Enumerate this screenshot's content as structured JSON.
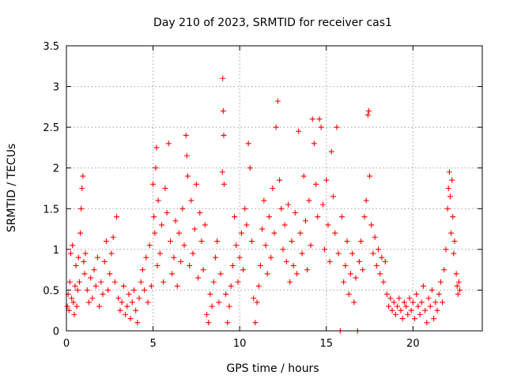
{
  "chart_data": {
    "type": "scatter",
    "title": "Day 210 of 2023, SRMTID for receiver cas1",
    "xlabel": "GPS time / hours",
    "ylabel": "SRMTID / TECUs",
    "xlim": [
      0,
      24
    ],
    "ylim": [
      0,
      3.5
    ],
    "xticks": [
      0,
      5,
      10,
      15,
      20
    ],
    "xtick_labels": [
      "0",
      "5",
      "10",
      "15",
      "20"
    ],
    "yticks": [
      0,
      0.5,
      1,
      1.5,
      2,
      2.5,
      3,
      3.5
    ],
    "ytick_labels": [
      "0",
      "0.5",
      "1",
      "1.5",
      "2",
      "2.5",
      "3",
      "3.5"
    ],
    "grid": true,
    "marker": "+",
    "marker_color": "#ff0000",
    "series": [
      {
        "name": "SRMTID",
        "points": [
          [
            0.05,
            0.3
          ],
          [
            0.1,
            0.45
          ],
          [
            0.15,
            0.25
          ],
          [
            0.2,
            0.6
          ],
          [
            0.25,
            0.95
          ],
          [
            0.3,
            0.4
          ],
          [
            0.35,
            1.05
          ],
          [
            0.4,
            0.35
          ],
          [
            0.45,
            0.2
          ],
          [
            0.5,
            0.55
          ],
          [
            0.55,
            0.8
          ],
          [
            0.6,
            0.3
          ],
          [
            0.65,
            0.5
          ],
          [
            0.7,
            0.9
          ],
          [
            0.75,
            0.6
          ],
          [
            0.8,
            1.2
          ],
          [
            0.85,
            1.5
          ],
          [
            0.9,
            1.75
          ],
          [
            0.95,
            1.9
          ],
          [
            1.0,
            0.85
          ],
          [
            1.05,
            0.7
          ],
          [
            1.1,
            0.95
          ],
          [
            1.2,
            0.5
          ],
          [
            1.3,
            0.35
          ],
          [
            1.4,
            0.65
          ],
          [
            1.5,
            0.4
          ],
          [
            1.6,
            0.75
          ],
          [
            1.7,
            0.55
          ],
          [
            1.8,
            0.9
          ],
          [
            1.9,
            0.3
          ],
          [
            2.0,
            0.6
          ],
          [
            2.1,
            0.45
          ],
          [
            2.2,
            0.85
          ],
          [
            2.3,
            1.1
          ],
          [
            2.4,
            0.5
          ],
          [
            2.5,
            0.7
          ],
          [
            2.6,
            0.95
          ],
          [
            2.7,
            1.15
          ],
          [
            2.8,
            0.6
          ],
          [
            2.9,
            1.4
          ],
          [
            3.0,
            0.4
          ],
          [
            3.1,
            0.25
          ],
          [
            3.2,
            0.35
          ],
          [
            3.3,
            0.55
          ],
          [
            3.4,
            0.2
          ],
          [
            3.5,
            0.3
          ],
          [
            3.6,
            0.45
          ],
          [
            3.7,
            0.15
          ],
          [
            3.8,
            0.35
          ],
          [
            3.9,
            0.5
          ],
          [
            4.0,
            0.25
          ],
          [
            4.1,
            0.1
          ],
          [
            4.2,
            0.4
          ],
          [
            4.3,
            0.6
          ],
          [
            4.4,
            0.75
          ],
          [
            4.5,
            0.5
          ],
          [
            4.6,
            0.9
          ],
          [
            4.7,
            0.35
          ],
          [
            4.8,
            1.05
          ],
          [
            4.9,
            0.55
          ],
          [
            5.0,
            1.8
          ],
          [
            5.05,
            1.4
          ],
          [
            5.1,
            1.2
          ],
          [
            5.15,
            2.0
          ],
          [
            5.2,
            2.25
          ],
          [
            5.25,
            0.8
          ],
          [
            5.3,
            1.6
          ],
          [
            5.4,
            0.95
          ],
          [
            5.5,
            1.3
          ],
          [
            5.6,
            0.6
          ],
          [
            5.7,
            1.75
          ],
          [
            5.8,
            1.45
          ],
          [
            5.9,
            2.3
          ],
          [
            6.0,
            1.1
          ],
          [
            6.1,
            0.7
          ],
          [
            6.2,
            0.9
          ],
          [
            6.3,
            1.35
          ],
          [
            6.4,
            0.55
          ],
          [
            6.5,
            1.2
          ],
          [
            6.6,
            0.85
          ],
          [
            6.7,
            1.5
          ],
          [
            6.8,
            1.05
          ],
          [
            6.9,
            2.4
          ],
          [
            6.95,
            2.15
          ],
          [
            7.0,
            1.9
          ],
          [
            7.1,
            0.8
          ],
          [
            7.2,
            1.6
          ],
          [
            7.3,
            0.95
          ],
          [
            7.4,
            1.25
          ],
          [
            7.5,
            1.8
          ],
          [
            7.6,
            0.65
          ],
          [
            7.7,
            1.45
          ],
          [
            7.8,
            1.1
          ],
          [
            7.9,
            0.75
          ],
          [
            8.0,
            1.3
          ],
          [
            8.1,
            0.2
          ],
          [
            8.2,
            0.1
          ],
          [
            8.3,
            0.45
          ],
          [
            8.4,
            0.3
          ],
          [
            8.5,
            0.6
          ],
          [
            8.6,
            0.9
          ],
          [
            8.7,
            1.1
          ],
          [
            8.8,
            0.35
          ],
          [
            8.9,
            0.7
          ],
          [
            9.0,
            1.95
          ],
          [
            9.02,
            3.1
          ],
          [
            9.05,
            2.7
          ],
          [
            9.08,
            2.4
          ],
          [
            9.1,
            1.8
          ],
          [
            9.2,
            0.45
          ],
          [
            9.3,
            0.1
          ],
          [
            9.4,
            0.3
          ],
          [
            9.5,
            0.55
          ],
          [
            9.6,
            0.8
          ],
          [
            9.7,
            1.4
          ],
          [
            9.8,
            1.05
          ],
          [
            9.9,
            0.6
          ],
          [
            10.0,
            0.9
          ],
          [
            10.1,
            1.2
          ],
          [
            10.2,
            0.75
          ],
          [
            10.3,
            1.5
          ],
          [
            10.4,
            1.3
          ],
          [
            10.5,
            2.3
          ],
          [
            10.6,
            2.0
          ],
          [
            10.7,
            1.1
          ],
          [
            10.8,
            0.4
          ],
          [
            10.9,
            0.1
          ],
          [
            11.0,
            0.35
          ],
          [
            11.1,
            0.55
          ],
          [
            11.2,
            0.8
          ],
          [
            11.3,
            1.25
          ],
          [
            11.4,
            1.6
          ],
          [
            11.5,
            1.05
          ],
          [
            11.6,
            0.7
          ],
          [
            11.7,
            1.4
          ],
          [
            11.8,
            0.9
          ],
          [
            11.9,
            1.75
          ],
          [
            12.0,
            1.2
          ],
          [
            12.1,
            2.5
          ],
          [
            12.2,
            2.82
          ],
          [
            12.3,
            1.85
          ],
          [
            12.4,
            1.5
          ],
          [
            12.5,
            1.0
          ],
          [
            12.6,
            1.3
          ],
          [
            12.7,
            0.85
          ],
          [
            12.8,
            1.55
          ],
          [
            12.9,
            0.6
          ],
          [
            13.0,
            1.1
          ],
          [
            13.1,
            0.8
          ],
          [
            13.2,
            1.45
          ],
          [
            13.3,
            0.7
          ],
          [
            13.4,
            2.45
          ],
          [
            13.5,
            1.2
          ],
          [
            13.6,
            0.95
          ],
          [
            13.7,
            1.9
          ],
          [
            13.8,
            1.35
          ],
          [
            13.9,
            0.75
          ],
          [
            14.0,
            1.6
          ],
          [
            14.1,
            1.05
          ],
          [
            14.2,
            2.6
          ],
          [
            14.3,
            2.3
          ],
          [
            14.4,
            1.8
          ],
          [
            14.5,
            1.4
          ],
          [
            14.6,
            2.6
          ],
          [
            14.7,
            2.5
          ],
          [
            14.8,
            1.55
          ],
          [
            14.9,
            1.0
          ],
          [
            15.0,
            1.85
          ],
          [
            15.1,
            1.3
          ],
          [
            15.2,
            0.85
          ],
          [
            15.3,
            2.2
          ],
          [
            15.4,
            1.65
          ],
          [
            15.5,
            1.2
          ],
          [
            15.6,
            2.5
          ],
          [
            15.7,
            0.95
          ],
          [
            15.8,
            0.0
          ],
          [
            15.9,
            1.4
          ],
          [
            16.0,
            0.6
          ],
          [
            16.1,
            0.8
          ],
          [
            16.2,
            1.1
          ],
          [
            16.3,
            0.45
          ],
          [
            16.4,
            0.7
          ],
          [
            16.5,
            0.95
          ],
          [
            16.6,
            0.35
          ],
          [
            16.7,
            0.65
          ],
          [
            16.8,
            0.0
          ],
          [
            16.9,
            0.85
          ],
          [
            17.0,
            1.1
          ],
          [
            17.1,
            0.75
          ],
          [
            17.2,
            1.4
          ],
          [
            17.3,
            1.6
          ],
          [
            17.4,
            2.65
          ],
          [
            17.45,
            2.7
          ],
          [
            17.5,
            1.9
          ],
          [
            17.6,
            1.3
          ],
          [
            17.7,
            0.95
          ],
          [
            17.8,
            1.15
          ],
          [
            17.9,
            0.8
          ],
          [
            18.0,
            1.0
          ],
          [
            18.1,
            0.7
          ],
          [
            18.2,
            0.9
          ],
          [
            18.3,
            0.6
          ],
          [
            18.4,
            0.85
          ],
          [
            18.5,
            0.45
          ],
          [
            18.6,
            0.3
          ],
          [
            18.7,
            0.4
          ],
          [
            18.8,
            0.25
          ],
          [
            18.9,
            0.35
          ],
          [
            19.0,
            0.2
          ],
          [
            19.1,
            0.3
          ],
          [
            19.2,
            0.4
          ],
          [
            19.3,
            0.25
          ],
          [
            19.4,
            0.15
          ],
          [
            19.5,
            0.35
          ],
          [
            19.6,
            0.3
          ],
          [
            19.7,
            0.2
          ],
          [
            19.8,
            0.4
          ],
          [
            19.9,
            0.25
          ],
          [
            20.0,
            0.35
          ],
          [
            20.1,
            0.15
          ],
          [
            20.2,
            0.45
          ],
          [
            20.3,
            0.3
          ],
          [
            20.4,
            0.2
          ],
          [
            20.5,
            0.35
          ],
          [
            20.6,
            0.55
          ],
          [
            20.7,
            0.25
          ],
          [
            20.8,
            0.1
          ],
          [
            20.9,
            0.4
          ],
          [
            21.0,
            0.3
          ],
          [
            21.1,
            0.5
          ],
          [
            21.2,
            0.15
          ],
          [
            21.3,
            0.35
          ],
          [
            21.4,
            0.25
          ],
          [
            21.5,
            0.45
          ],
          [
            21.6,
            0.6
          ],
          [
            21.7,
            0.35
          ],
          [
            21.8,
            0.75
          ],
          [
            21.9,
            1.0
          ],
          [
            22.0,
            1.5
          ],
          [
            22.05,
            1.75
          ],
          [
            22.1,
            1.95
          ],
          [
            22.15,
            1.65
          ],
          [
            22.2,
            1.2
          ],
          [
            22.25,
            1.85
          ],
          [
            22.3,
            1.4
          ],
          [
            22.35,
            0.95
          ],
          [
            22.4,
            1.1
          ],
          [
            22.5,
            0.7
          ],
          [
            22.55,
            0.55
          ],
          [
            22.6,
            0.45
          ],
          [
            22.65,
            0.6
          ],
          [
            22.7,
            0.5
          ]
        ]
      }
    ]
  }
}
